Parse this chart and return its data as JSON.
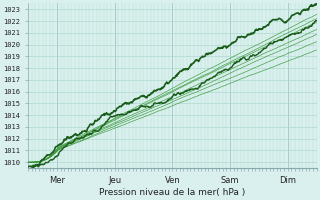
{
  "title": "",
  "xlabel": "Pression niveau de la mer( hPa )",
  "ylim": [
    1009.5,
    1023.5
  ],
  "yticks": [
    1010,
    1011,
    1012,
    1013,
    1014,
    1015,
    1016,
    1017,
    1018,
    1019,
    1020,
    1021,
    1022,
    1023
  ],
  "x_day_labels": [
    "Mer",
    "Jeu",
    "Ven",
    "Sam",
    "Dim"
  ],
  "x_day_positions": [
    24,
    72,
    120,
    168,
    216
  ],
  "xlim": [
    0,
    240
  ],
  "background_color": "#daf0ee",
  "grid_color": "#b0d8d0",
  "line_color_dark": "#1a5c1a",
  "line_color_mid": "#2a7a2a",
  "line_color_thin": "#3a9a3a",
  "total_hours": 240
}
